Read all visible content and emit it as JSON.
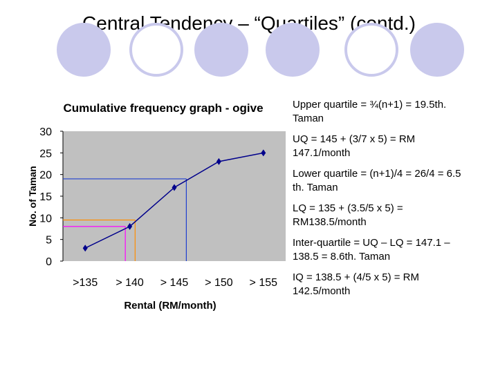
{
  "slide": {
    "title": "Central Tendency – “Quartiles” (contd.)",
    "bullets": [
      "Upper quartile = ¾(n+1) = 19.5th. Taman",
      "UQ = 145 + (3/7 x 5) = RM 147.1/month",
      "Lower quartile = (n+1)/4 = 26/4 = 6.5 th. Taman",
      "LQ = 135 + (3.5/5 x 5) = RM138.5/month",
      "Inter-quartile = UQ – LQ = 147.1 – 138.5 = 8.6th. Taman",
      "IQ = 138.5 + (4/5 x 5) = RM 142.5/month"
    ]
  },
  "chart_data": {
    "type": "line",
    "title": "Cumulative frequency graph - ogive",
    "xlabel": "Rental (RM/month)",
    "ylabel": "No. of Taman",
    "categories": [
      ">135",
      "> 140",
      "> 145",
      "> 150",
      "> 155"
    ],
    "series": [
      {
        "values": [
          3,
          8,
          17,
          23,
          25
        ],
        "color": "#00008b"
      }
    ],
    "ylim": [
      0,
      30
    ],
    "yticks": [
      0,
      5,
      10,
      15,
      20,
      25,
      30
    ],
    "grid": false,
    "plot_background": "#c0c0c0",
    "quartile_guides": [
      {
        "y": 19,
        "x_category_position": 2.27,
        "color": "#1f3fd0"
      },
      {
        "y": 8,
        "x_category_position": 0.9,
        "color": "#ff00ff"
      },
      {
        "y": 9.5,
        "x_category_position": 1.12,
        "color": "#ff8c00"
      }
    ]
  }
}
